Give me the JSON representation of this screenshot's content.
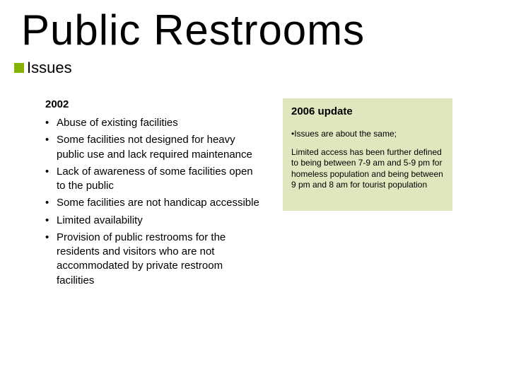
{
  "title": "Public Restrooms",
  "subtitle": "Issues",
  "year_heading": "2002",
  "bullets": [
    "Abuse of existing facilities",
    "Some facilities not designed for heavy public use and lack required maintenance",
    "Lack of awareness of some facilities open to the public",
    "Some facilities are not handicap accessible",
    "Limited availability",
    "Provision of public restrooms for the residents and visitors who are not accommodated by private restroom facilities"
  ],
  "update": {
    "title": "2006 update",
    "line1": "•Issues are about the same;",
    "line2": "Limited access has been further defined to being between 7-9 am and 5-9 pm for homeless population and  being between 9 pm and 8 am for tourist population"
  },
  "colors": {
    "accent_green": "#86b300",
    "box_bg": "#e0e7bf",
    "text": "#000000",
    "background": "#ffffff"
  }
}
